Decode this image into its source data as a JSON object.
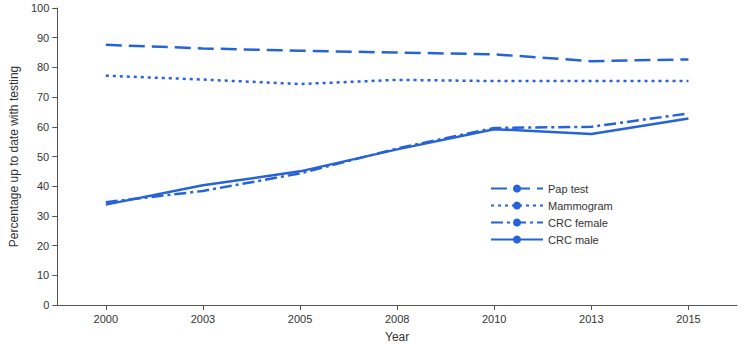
{
  "chart_data": {
    "type": "line",
    "x_label": "Year",
    "y_label": "Percentage up to date with testing",
    "categories": [
      "2000",
      "2003",
      "2005",
      "2008",
      "2010",
      "2013",
      "2015"
    ],
    "ylim": [
      0,
      100
    ],
    "yticks": [
      0,
      10,
      20,
      30,
      40,
      50,
      60,
      70,
      80,
      90,
      100
    ],
    "grid": false,
    "legend": "right",
    "marker": "none",
    "series": [
      {
        "name": "Pap test",
        "color": "#2563d6",
        "line_style": "dashed",
        "values": [
          87.6,
          86.4,
          85.6,
          85.0,
          84.4,
          82.1,
          82.7
        ]
      },
      {
        "name": "Mammogram",
        "color": "#2563d6",
        "line_style": "dotted",
        "values": [
          77.2,
          75.9,
          74.4,
          75.8,
          75.4,
          75.4,
          75.4
        ]
      },
      {
        "name": "CRC female",
        "color": "#2563d6",
        "line_style": "dashdot",
        "values": [
          34.6,
          38.4,
          44.3,
          52.7,
          59.6,
          60.0,
          64.5
        ]
      },
      {
        "name": "CRC male",
        "color": "#2563d6",
        "line_style": "solid",
        "values": [
          33.8,
          40.3,
          45.0,
          52.4,
          59.2,
          57.6,
          62.8
        ]
      }
    ]
  }
}
